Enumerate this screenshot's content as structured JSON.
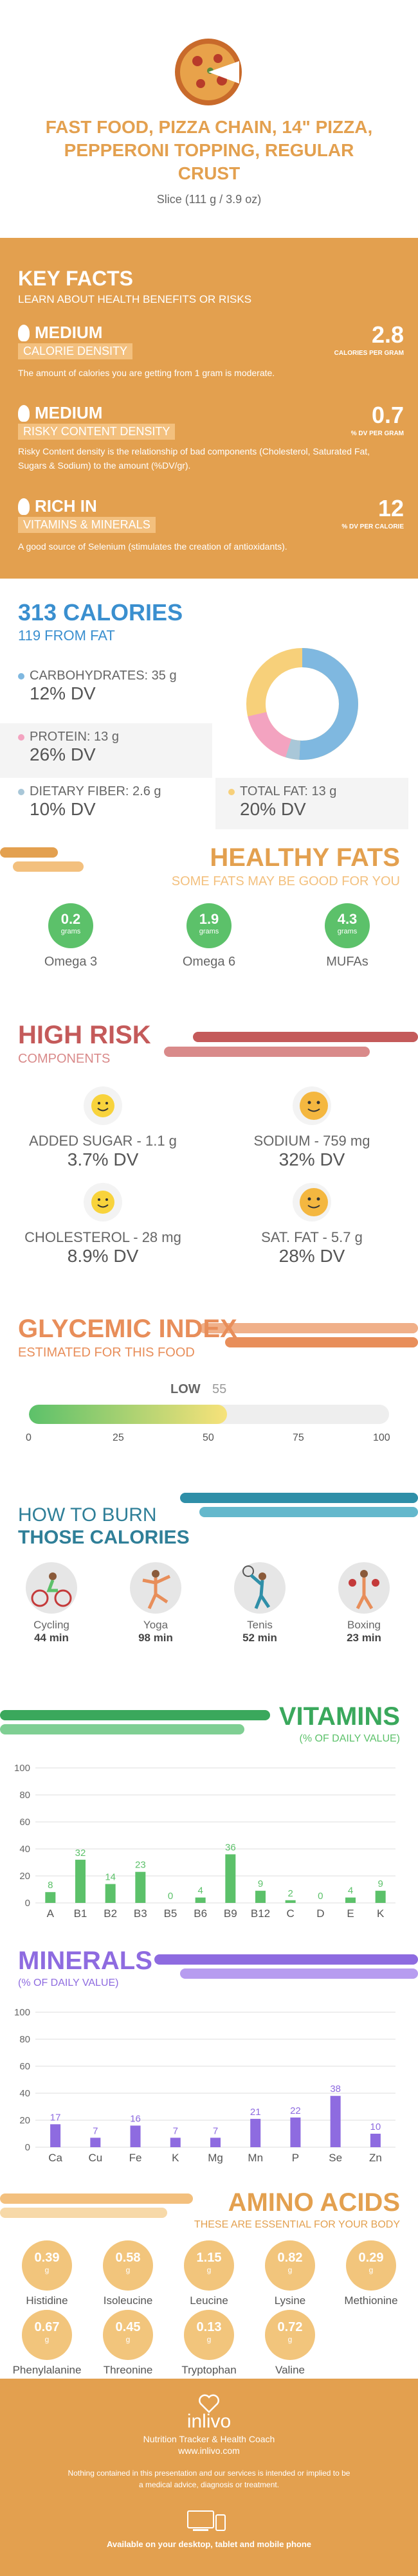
{
  "header": {
    "title": "FAST FOOD, PIZZA CHAIN, 14\" PIZZA, PEPPERONI TOPPING, REGULAR CRUST",
    "serving": "Slice (111 g / 3.9 oz)"
  },
  "key_facts": {
    "title": "KEY FACTS",
    "subtitle": "LEARN ABOUT HEALTH BENEFITS OR RISKS",
    "items": [
      {
        "level": "MEDIUM",
        "name": "CALORIE DENSITY",
        "value": "2.8",
        "unit": "CALORIES PER GRAM",
        "desc": "The amount of calories you are getting from 1 gram is moderate."
      },
      {
        "level": "MEDIUM",
        "name": "RISKY CONTENT DENSITY",
        "value": "0.7",
        "unit": "% DV PER GRAM",
        "desc": "Risky Content density is the relationship of bad components (Cholesterol, Saturated Fat, Sugars & Sodium) to the amount (%DV/gr)."
      },
      {
        "level": "RICH IN",
        "name": "VITAMINS & MINERALS",
        "value": "12",
        "unit": "% DV PER CALORIE",
        "desc": "A good source of Selenium (stimulates the creation of antioxidants)."
      }
    ]
  },
  "calories": {
    "title": "313 CALORIES",
    "subtitle": "119 FROM FAT",
    "carbs_label": "CARBOHYDRATES: 35 g",
    "carbs_dv": "12% DV",
    "protein_label": "PROTEIN: 13 g",
    "protein_dv": "26% DV",
    "fiber_label": "DIETARY FIBER: 2.6 g",
    "fiber_dv": "10% DV",
    "fat_label": "TOTAL FAT: 13 g",
    "fat_dv": "20% DV",
    "colors": {
      "carbs": "#7fb8e0",
      "protein": "#f3a3c0",
      "fiber": "#a9c7d8",
      "fat": "#f7d07a"
    }
  },
  "healthy_fats": {
    "title": "HEALTHY FATS",
    "subtitle": "SOME FATS MAY BE GOOD FOR YOU",
    "items": [
      {
        "value": "0.2",
        "unit": "grams",
        "name": "Omega 3"
      },
      {
        "value": "1.9",
        "unit": "grams",
        "name": "Omega 6"
      },
      {
        "value": "4.3",
        "unit": "grams",
        "name": "MUFAs"
      }
    ]
  },
  "high_risk": {
    "title": "HIGH RISK",
    "subtitle": "COMPONENTS",
    "items": [
      {
        "label": "ADDED SUGAR - 1.1 g",
        "dv": "3.7% DV"
      },
      {
        "label": "SODIUM - 759 mg",
        "dv": "32% DV"
      },
      {
        "label": "CHOLESTEROL - 28 mg",
        "dv": "8.9% DV"
      },
      {
        "label": "SAT. FAT - 5.7 g",
        "dv": "28% DV"
      }
    ]
  },
  "glycemic": {
    "title": "GLYCEMIC INDEX",
    "subtitle": "ESTIMATED FOR THIS FOOD",
    "level": "LOW",
    "value": "55",
    "ticks": [
      "0",
      "25",
      "50",
      "75",
      "100"
    ]
  },
  "burn": {
    "title1": "HOW TO BURN",
    "title2": "THOSE CALORIES",
    "items": [
      {
        "name": "Cycling",
        "time": "44 min"
      },
      {
        "name": "Yoga",
        "time": "98 min"
      },
      {
        "name": "Tenis",
        "time": "52 min"
      },
      {
        "name": "Boxing",
        "time": "23 min"
      }
    ]
  },
  "vitamins": {
    "title": "VITAMINS",
    "subtitle": "(% OF DAILY VALUE)"
  },
  "minerals": {
    "title": "MINERALS",
    "subtitle": "(% OF DAILY VALUE)"
  },
  "chart_data": [
    {
      "type": "bar",
      "categories": [
        "A",
        "B1",
        "B2",
        "B3",
        "B5",
        "B6",
        "B9",
        "B12",
        "C",
        "D",
        "E",
        "K"
      ],
      "values": [
        8,
        32,
        14,
        23,
        0,
        4,
        36,
        9,
        2,
        0,
        4,
        9
      ],
      "ylim": [
        0,
        100
      ],
      "yticks": [
        "0",
        "20",
        "40",
        "60",
        "80",
        "100"
      ],
      "color": "#5cc16a"
    },
    {
      "type": "bar",
      "categories": [
        "Ca",
        "Cu",
        "Fe",
        "K",
        "Mg",
        "Mn",
        "P",
        "Se",
        "Zn"
      ],
      "values": [
        17,
        7,
        16,
        7,
        7,
        21,
        22,
        38,
        10
      ],
      "ylim": [
        0,
        100
      ],
      "yticks": [
        "0",
        "20",
        "40",
        "60",
        "80",
        "100"
      ],
      "color": "#8e6be0"
    }
  ],
  "amino": {
    "title": "AMINO ACIDS",
    "subtitle": "THESE ARE ESSENTIAL FOR YOUR BODY",
    "items": [
      {
        "value": "0.39",
        "unit": "g",
        "name": "Histidine"
      },
      {
        "value": "0.58",
        "unit": "g",
        "name": "Isoleucine"
      },
      {
        "value": "1.15",
        "unit": "g",
        "name": "Leucine"
      },
      {
        "value": "0.82",
        "unit": "g",
        "name": "Lysine"
      },
      {
        "value": "0.29",
        "unit": "g",
        "name": "Methionine"
      },
      {
        "value": "0.67",
        "unit": "g",
        "name": "Phenylalanine"
      },
      {
        "value": "0.45",
        "unit": "g",
        "name": "Threonine"
      },
      {
        "value": "0.13",
        "unit": "g",
        "name": "Tryptophan"
      },
      {
        "value": "0.72",
        "unit": "g",
        "name": "Valine"
      }
    ]
  },
  "footer": {
    "brand": "inlivo",
    "tagline": "Nutrition Tracker & Health Coach",
    "url": "www.inlivo.com",
    "disclaimer": "Nothing contained in this presentation and our services is intended or implied to be a medical advice, diagnosis or treatment.",
    "available": "Available on your desktop, tablet and mobile phone"
  }
}
